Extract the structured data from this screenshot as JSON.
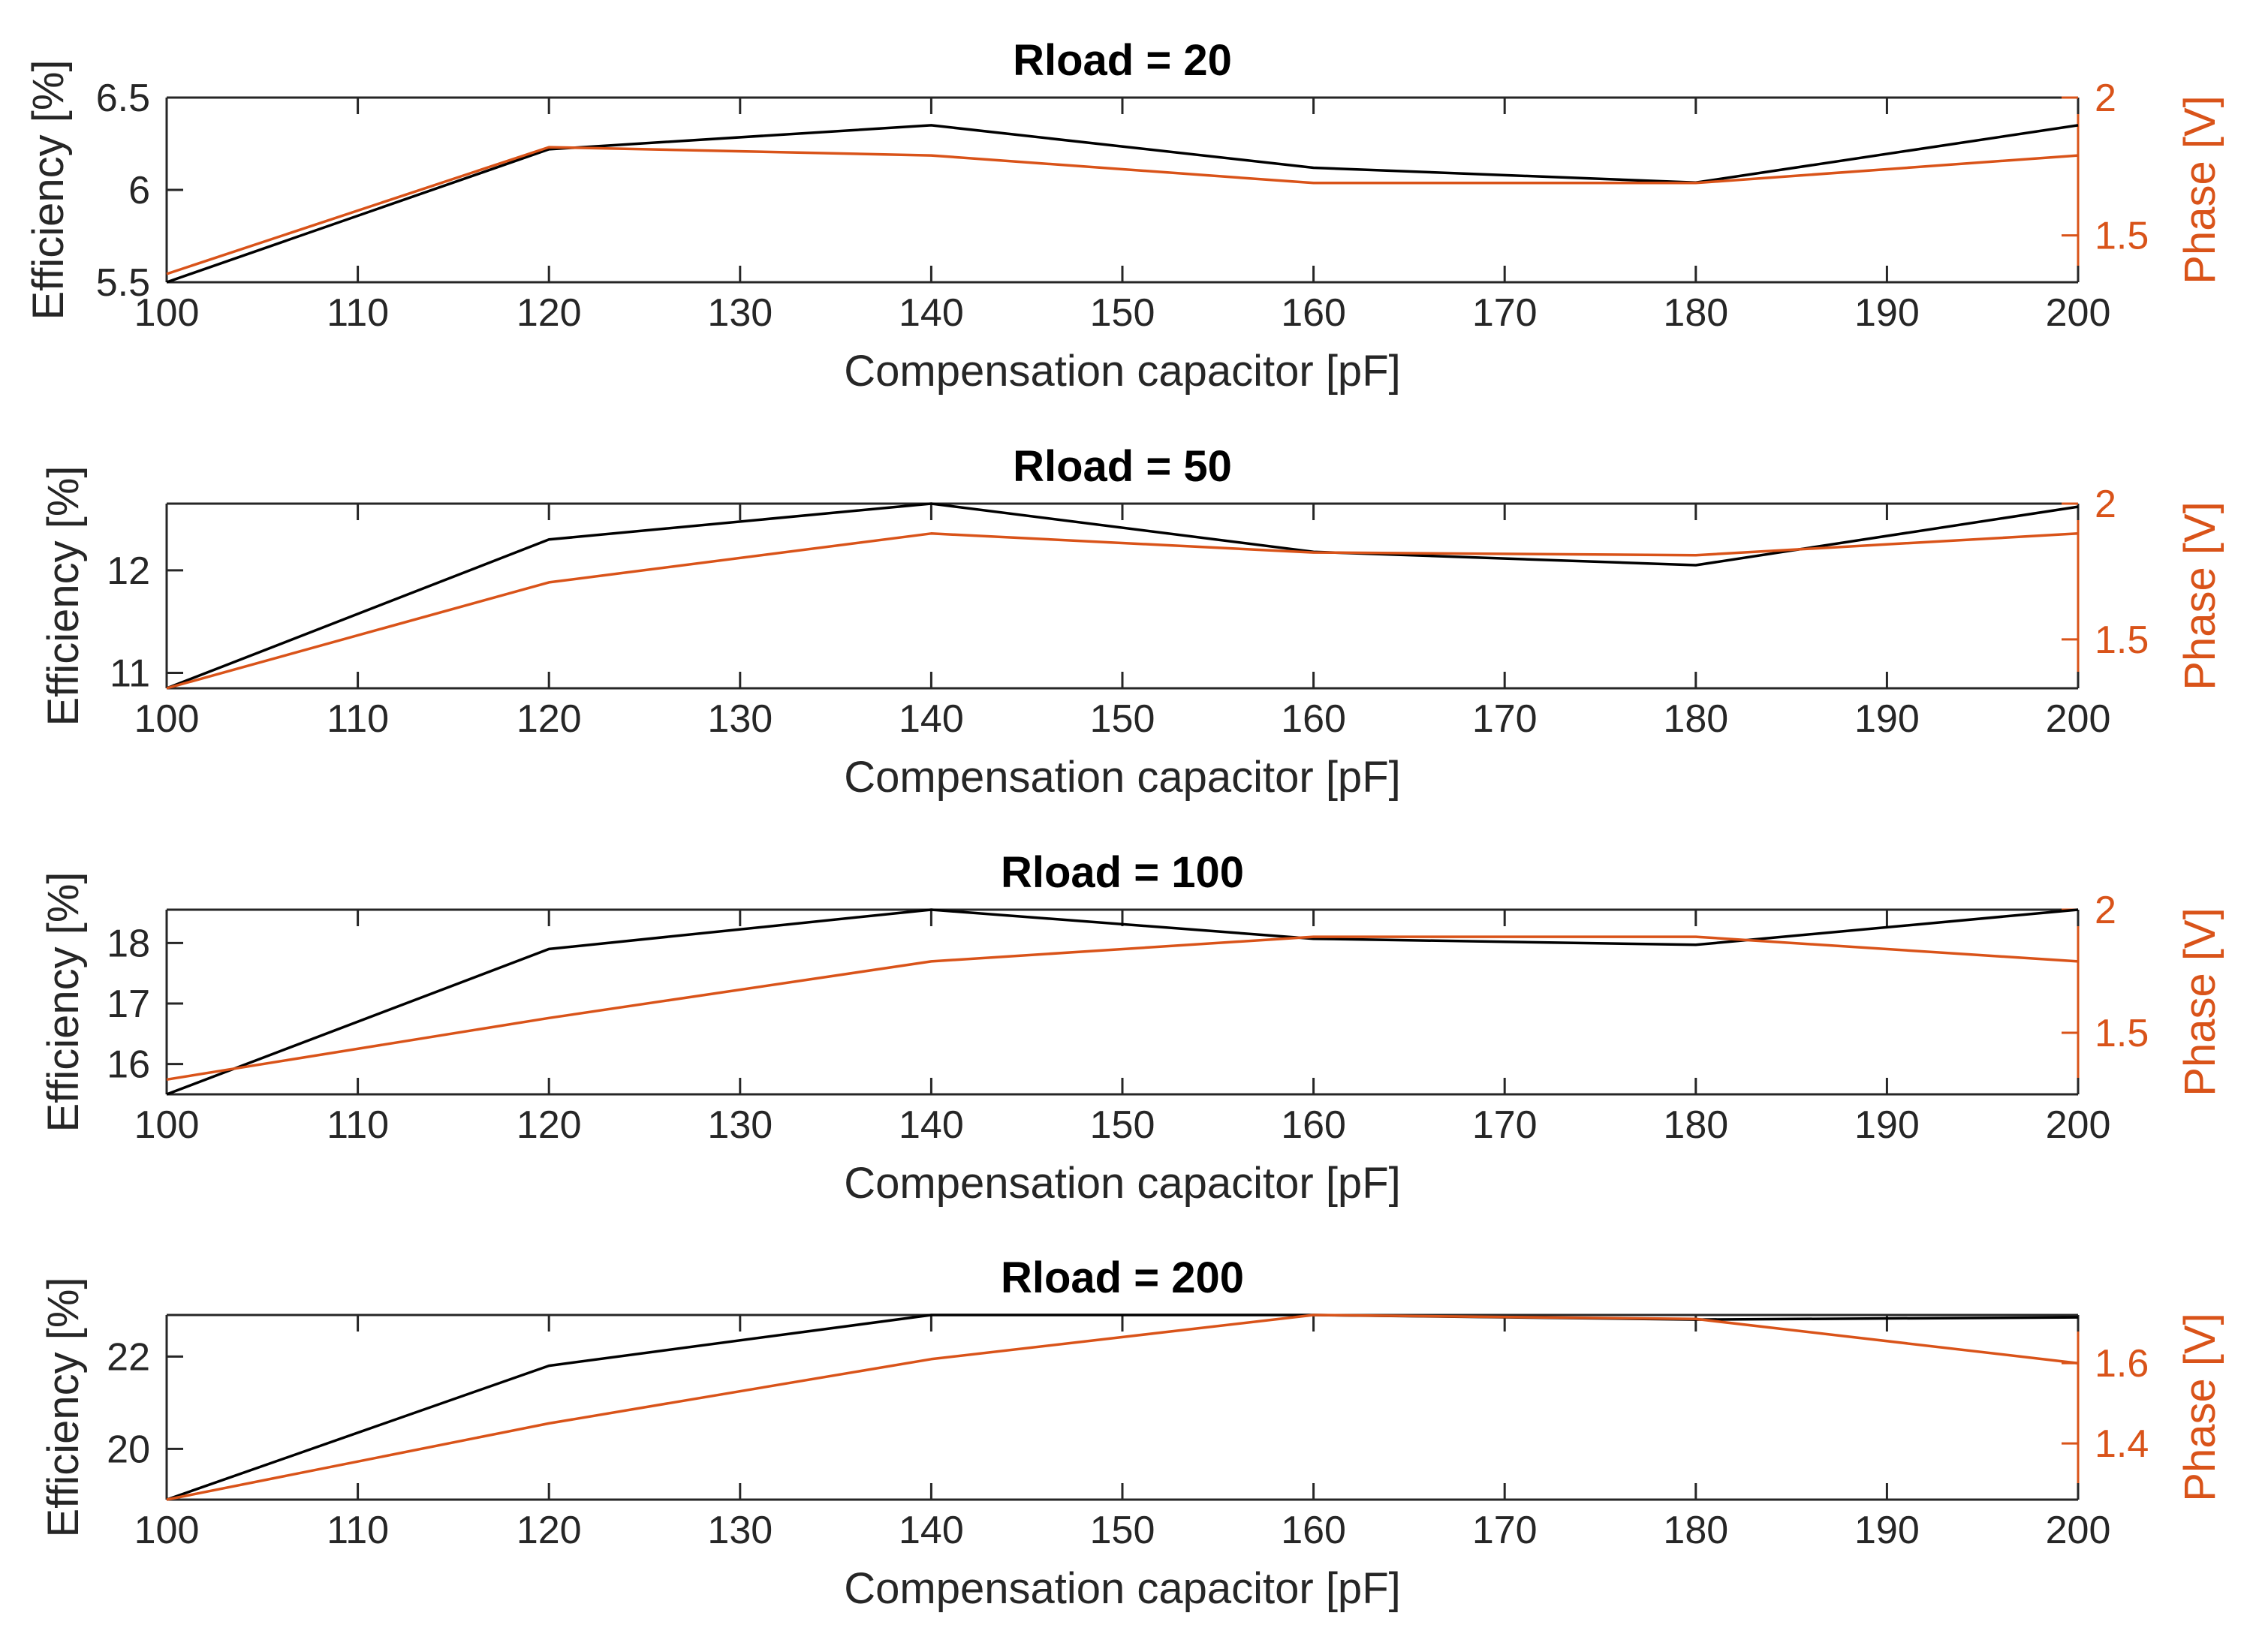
{
  "chart_data": [
    {
      "type": "line",
      "title": "Rload = 20",
      "xlabel": "Compensation capacitor [pF]",
      "ylabel": "Efficiency [%]",
      "ylabel_right": "Phase [V]",
      "x": [
        100,
        120,
        140,
        160,
        180,
        200
      ],
      "xlim": [
        100,
        200
      ],
      "xticks": [
        "100",
        "110",
        "120",
        "130",
        "140",
        "150",
        "160",
        "170",
        "180",
        "190",
        "200"
      ],
      "ylim": [
        5.5,
        6.5
      ],
      "yticks": [
        "5.5",
        "6",
        "6.5"
      ],
      "ylim_right": [
        1.33,
        2.0
      ],
      "yticks_right": [
        "1.5",
        "2"
      ],
      "series": [
        {
          "name": "Efficiency",
          "axis": "left",
          "color": "#000000",
          "values": [
            5.5,
            6.22,
            6.35,
            6.12,
            6.04,
            6.35
          ]
        },
        {
          "name": "Phase",
          "axis": "right",
          "color": "#D95319",
          "values": [
            1.36,
            1.82,
            1.79,
            1.69,
            1.69,
            1.79
          ]
        }
      ]
    },
    {
      "type": "line",
      "title": "Rload = 50",
      "xlabel": "Compensation capacitor [pF]",
      "ylabel": "Efficiency [%]",
      "ylabel_right": "Phase [V]",
      "x": [
        100,
        120,
        140,
        160,
        180,
        200
      ],
      "xlim": [
        100,
        200
      ],
      "xticks": [
        "100",
        "110",
        "120",
        "130",
        "140",
        "150",
        "160",
        "170",
        "180",
        "190",
        "200"
      ],
      "ylim": [
        10.85,
        12.65
      ],
      "yticks": [
        "11",
        "12"
      ],
      "ylim_right": [
        1.32,
        2.0
      ],
      "yticks_right": [
        "1.5",
        "2"
      ],
      "series": [
        {
          "name": "Efficiency",
          "axis": "left",
          "color": "#000000",
          "values": [
            10.85,
            12.3,
            12.65,
            12.18,
            12.05,
            12.62
          ]
        },
        {
          "name": "Phase",
          "axis": "right",
          "color": "#D95319",
          "values": [
            1.32,
            1.71,
            1.89,
            1.82,
            1.81,
            1.89
          ]
        }
      ]
    },
    {
      "type": "line",
      "title": "Rload = 100",
      "xlabel": "Compensation capacitor [pF]",
      "ylabel": "Efficiency [%]",
      "ylabel_right": "Phase [V]",
      "x": [
        100,
        120,
        140,
        160,
        180,
        200
      ],
      "xlim": [
        100,
        200
      ],
      "xticks": [
        "100",
        "110",
        "120",
        "130",
        "140",
        "150",
        "160",
        "170",
        "180",
        "190",
        "200"
      ],
      "ylim": [
        15.5,
        18.55
      ],
      "yticks": [
        "16",
        "17",
        "18"
      ],
      "ylim_right": [
        1.25,
        2.0
      ],
      "yticks_right": [
        "1.5",
        "2"
      ],
      "series": [
        {
          "name": "Efficiency",
          "axis": "left",
          "color": "#000000",
          "values": [
            15.5,
            17.9,
            18.55,
            18.07,
            17.97,
            18.55
          ]
        },
        {
          "name": "Phase",
          "axis": "right",
          "color": "#D95319",
          "values": [
            1.31,
            1.56,
            1.79,
            1.89,
            1.89,
            1.79
          ]
        }
      ]
    },
    {
      "type": "line",
      "title": "Rload = 200",
      "xlabel": "Compensation capacitor [pF]",
      "ylabel": "Efficiency [%]",
      "ylabel_right": "Phase [V]",
      "x": [
        100,
        120,
        140,
        160,
        180,
        200
      ],
      "xlim": [
        100,
        200
      ],
      "xticks": [
        "100",
        "110",
        "120",
        "130",
        "140",
        "150",
        "160",
        "170",
        "180",
        "190",
        "200"
      ],
      "ylim": [
        18.9,
        22.9
      ],
      "yticks": [
        "20",
        "22"
      ],
      "ylim_right": [
        1.26,
        1.72
      ],
      "yticks_right": [
        "1.4",
        "1.6"
      ],
      "series": [
        {
          "name": "Efficiency",
          "axis": "left",
          "color": "#000000",
          "values": [
            18.9,
            21.8,
            22.9,
            22.9,
            22.8,
            22.85
          ]
        },
        {
          "name": "Phase",
          "axis": "right",
          "color": "#D95319",
          "values": [
            1.26,
            1.45,
            1.61,
            1.72,
            1.71,
            1.6
          ]
        }
      ]
    }
  ]
}
